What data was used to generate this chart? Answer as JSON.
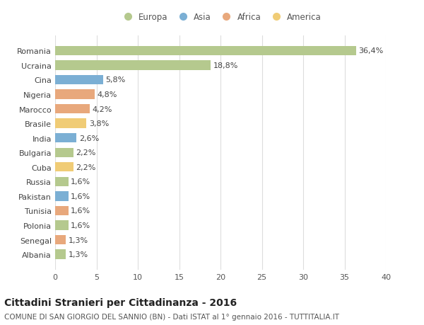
{
  "countries": [
    "Romania",
    "Ucraina",
    "Cina",
    "Nigeria",
    "Marocco",
    "Brasile",
    "India",
    "Bulgaria",
    "Cuba",
    "Russia",
    "Pakistan",
    "Tunisia",
    "Polonia",
    "Senegal",
    "Albania"
  ],
  "values": [
    36.4,
    18.8,
    5.8,
    4.8,
    4.2,
    3.8,
    2.6,
    2.2,
    2.2,
    1.6,
    1.6,
    1.6,
    1.6,
    1.3,
    1.3
  ],
  "labels": [
    "36,4%",
    "18,8%",
    "5,8%",
    "4,8%",
    "4,2%",
    "3,8%",
    "2,6%",
    "2,2%",
    "2,2%",
    "1,6%",
    "1,6%",
    "1,6%",
    "1,6%",
    "1,3%",
    "1,3%"
  ],
  "continents": [
    "Europa",
    "Europa",
    "Asia",
    "Africa",
    "Africa",
    "America",
    "Asia",
    "Europa",
    "America",
    "Europa",
    "Asia",
    "Africa",
    "Europa",
    "Africa",
    "Europa"
  ],
  "colors": {
    "Europa": "#b5c98e",
    "Asia": "#7bafd4",
    "Africa": "#e8a87c",
    "America": "#f0cc76"
  },
  "legend_order": [
    "Europa",
    "Asia",
    "Africa",
    "America"
  ],
  "xlim": [
    0,
    40
  ],
  "xticks": [
    0,
    5,
    10,
    15,
    20,
    25,
    30,
    35,
    40
  ],
  "title": "Cittadini Stranieri per Cittadinanza - 2016",
  "subtitle": "COMUNE DI SAN GIORGIO DEL SANNIO (BN) - Dati ISTAT al 1° gennaio 2016 - TUTTITALIA.IT",
  "bar_background": "#ffffff",
  "grid_color": "#dddddd",
  "title_fontsize": 10,
  "subtitle_fontsize": 7.5,
  "label_fontsize": 8,
  "tick_fontsize": 8,
  "legend_fontsize": 8.5,
  "bar_height": 0.65
}
